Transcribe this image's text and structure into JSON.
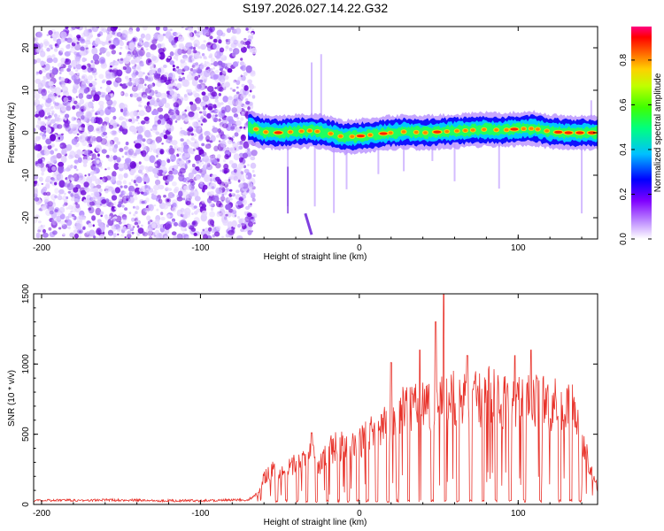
{
  "figure_title": "S197.2026.027.14.22.G32",
  "chart_data": [
    {
      "type": "heatmap",
      "title": "S197.2026.027.14.22.G32",
      "xlabel": "Height of straight line (km)",
      "ylabel": "Frequency (Hz)",
      "xlim": [
        -205,
        150
      ],
      "ylim": [
        -25,
        25
      ],
      "xticks": [
        -200,
        -100,
        0,
        100
      ],
      "yticks": [
        -20,
        -10,
        0,
        10,
        20
      ],
      "xtick_labels": [
        "-200",
        "-100",
        "0",
        "100"
      ],
      "ytick_labels": [
        "-20",
        "-10",
        "0",
        "10",
        "20"
      ],
      "noise_region_x": [
        -205,
        -70
      ],
      "signal_region_x": [
        -70,
        150
      ],
      "signal_track_freq_hz": [
        {
          "x": -70,
          "f": 1.5
        },
        {
          "x": -60,
          "f": 0.2
        },
        {
          "x": -50,
          "f": 0.0
        },
        {
          "x": -40,
          "f": 0.3
        },
        {
          "x": -30,
          "f": 0.5
        },
        {
          "x": -20,
          "f": 0.0
        },
        {
          "x": -10,
          "f": -1.0
        },
        {
          "x": 0,
          "f": -0.8
        },
        {
          "x": 10,
          "f": -0.4
        },
        {
          "x": 20,
          "f": 0.0
        },
        {
          "x": 30,
          "f": 0.3
        },
        {
          "x": 40,
          "f": 0.0
        },
        {
          "x": 50,
          "f": 0.2
        },
        {
          "x": 60,
          "f": 0.4
        },
        {
          "x": 70,
          "f": 0.6
        },
        {
          "x": 80,
          "f": 0.8
        },
        {
          "x": 90,
          "f": 0.6
        },
        {
          "x": 100,
          "f": 0.9
        },
        {
          "x": 110,
          "f": 1.0
        },
        {
          "x": 120,
          "f": 0.3
        },
        {
          "x": 130,
          "f": 0.0
        },
        {
          "x": 140,
          "f": 0.0
        },
        {
          "x": 150,
          "f": 0.0
        }
      ],
      "colorbar": {
        "label": "Normalized spectral amplitude",
        "range": [
          0.0,
          0.95
        ],
        "ticks": [
          0.0,
          0.2,
          0.4,
          0.6,
          0.8
        ],
        "tick_labels": [
          "0.0",
          "0.2",
          "0.4",
          "0.6",
          "0.8"
        ],
        "colors": [
          "#ffffff",
          "#a070ff",
          "#0000ff",
          "#00ffff",
          "#00ff00",
          "#ffff00",
          "#ff8000",
          "#ff0000",
          "#ff0080"
        ]
      }
    },
    {
      "type": "line",
      "xlabel": "Height of straight line (km)",
      "ylabel": "SNR (10 * v/v)",
      "xlim": [
        -205,
        150
      ],
      "ylim": [
        0,
        1500
      ],
      "xticks": [
        -200,
        -100,
        0,
        100
      ],
      "yticks": [
        0,
        500,
        1000,
        1500
      ],
      "xtick_labels": [
        "-200",
        "-100",
        "0",
        "100"
      ],
      "ytick_labels": [
        "0",
        "500",
        "1000",
        "1500"
      ],
      "color": "#e8322a",
      "series": [
        {
          "name": "SNR",
          "x": [
            -205,
            -190,
            -175,
            -160,
            -140,
            -120,
            -100,
            -85,
            -70,
            -64,
            -60,
            -55,
            -50,
            -45,
            -40,
            -35,
            -30,
            -25,
            -20,
            -15,
            -10,
            -5,
            0,
            5,
            10,
            15,
            20,
            25,
            30,
            35,
            40,
            45,
            50,
            55,
            60,
            65,
            70,
            75,
            80,
            85,
            90,
            95,
            100,
            105,
            110,
            115,
            120,
            125,
            130,
            135,
            140,
            145,
            150
          ],
          "y": [
            25,
            30,
            28,
            32,
            30,
            27,
            28,
            30,
            32,
            80,
            220,
            280,
            230,
            300,
            320,
            350,
            400,
            300,
            420,
            450,
            470,
            430,
            500,
            560,
            600,
            640,
            680,
            700,
            760,
            800,
            820,
            760,
            800,
            840,
            860,
            800,
            840,
            820,
            860,
            880,
            800,
            840,
            820,
            800,
            810,
            820,
            800,
            780,
            800,
            760,
            560,
            300,
            120
          ]
        }
      ],
      "dropouts_x": [
        -52,
        -46,
        -39,
        -33,
        -27,
        -20,
        -13,
        -7,
        -1,
        5,
        11,
        18,
        24,
        31,
        38,
        46,
        54,
        62,
        70,
        78,
        86,
        95,
        104,
        114,
        126,
        133,
        139
      ],
      "spikes": [
        {
          "x": -30,
          "y": 510
        },
        {
          "x": 14,
          "y": 640
        },
        {
          "x": 20,
          "y": 1010
        },
        {
          "x": 38,
          "y": 1100
        },
        {
          "x": 48,
          "y": 1300
        },
        {
          "x": 53,
          "y": 1500
        },
        {
          "x": 68,
          "y": 1060
        },
        {
          "x": 98,
          "y": 1060
        },
        {
          "x": 108,
          "y": 1100
        },
        {
          "x": 112,
          "y": 900
        }
      ]
    }
  ]
}
